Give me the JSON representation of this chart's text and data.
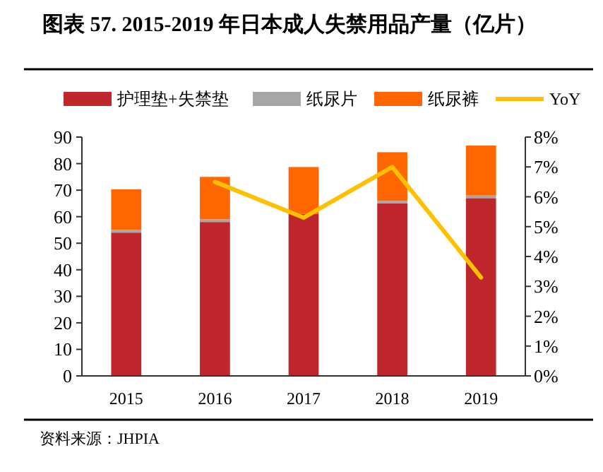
{
  "chart_data": {
    "type": "bar",
    "title": "图表 57. 2015-2019 年日本成人失禁用品产量（亿片）",
    "categories": [
      "2015",
      "2016",
      "2017",
      "2018",
      "2019"
    ],
    "stacked": true,
    "series": [
      {
        "name": "护理垫+失禁垫",
        "color": "#c0272d",
        "values": [
          54,
          58,
          61,
          65,
          67
        ]
      },
      {
        "name": "纸尿片",
        "color": "#a6a6a6",
        "values": [
          1,
          1,
          null,
          1,
          1
        ]
      },
      {
        "name": "纸尿裤",
        "color": "#ff6600",
        "values": [
          15.3,
          16,
          17.7,
          18.3,
          18.8
        ]
      },
      {
        "name": "YoY",
        "type": "line",
        "axis": "y2",
        "color": "#ffc000",
        "values": [
          null,
          6.5,
          5.3,
          7.0,
          3.3
        ]
      }
    ],
    "ylim": [
      0,
      90
    ],
    "yticks": [
      0,
      10,
      20,
      30,
      40,
      50,
      60,
      70,
      80,
      90
    ],
    "y2lim": [
      0,
      8
    ],
    "y2ticks": [
      {
        "value": 0,
        "label": "0%"
      },
      {
        "value": 1,
        "label": "1%"
      },
      {
        "value": 2,
        "label": "2%"
      },
      {
        "value": 3,
        "label": "3%"
      },
      {
        "value": 4,
        "label": "4%"
      },
      {
        "value": 5,
        "label": "5%"
      },
      {
        "value": 6,
        "label": "6%"
      },
      {
        "value": 7,
        "label": "7%"
      },
      {
        "value": 8,
        "label": "8%"
      }
    ],
    "legend": "top",
    "grid": false,
    "annotations": [
      "资料来源：JHPIA"
    ]
  }
}
